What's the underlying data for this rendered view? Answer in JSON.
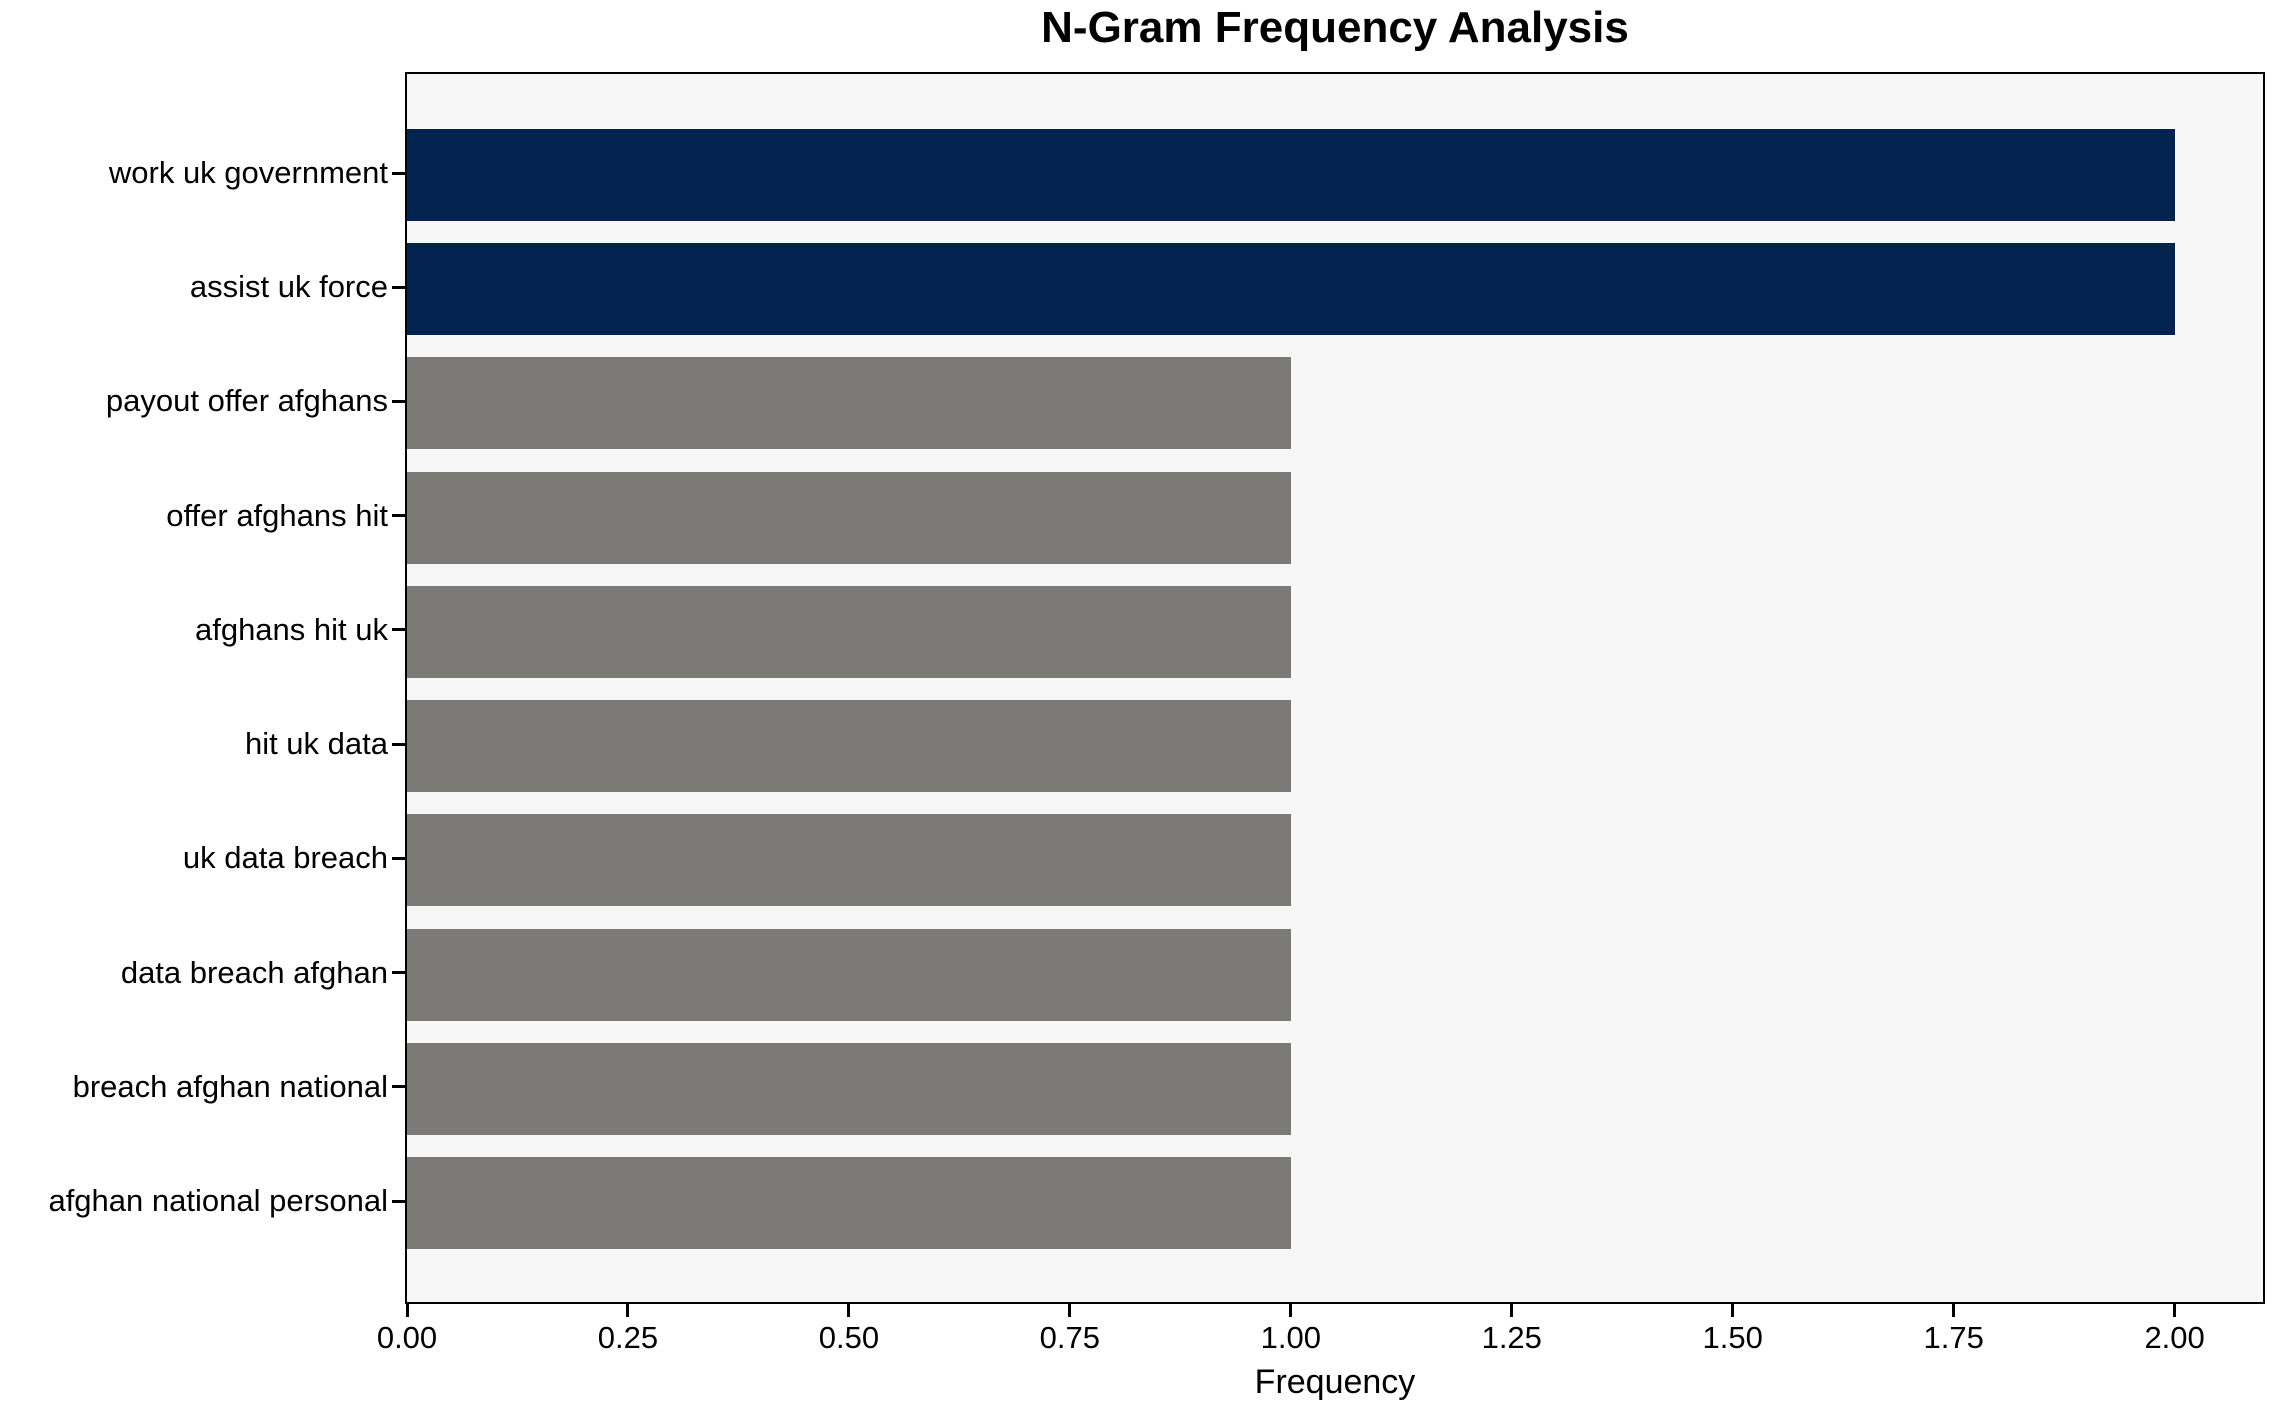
{
  "chart_data": {
    "type": "bar",
    "orientation": "horizontal",
    "title": "N-Gram Frequency Analysis",
    "xlabel": "Frequency",
    "ylabel": "",
    "categories": [
      "work uk government",
      "assist uk force",
      "payout offer afghans",
      "offer afghans hit",
      "afghans hit uk",
      "hit uk data",
      "uk data breach",
      "data breach afghan",
      "breach afghan national",
      "afghan national personal"
    ],
    "values": [
      2,
      2,
      1,
      1,
      1,
      1,
      1,
      1,
      1,
      1
    ],
    "bar_colors": [
      "#02234e",
      "#02234e",
      "#7b7a77",
      "#7b7a77",
      "#7b7a77",
      "#7b7a77",
      "#7b7a77",
      "#7b7a77",
      "#7b7a77",
      "#7b7a77"
    ],
    "highlight_color": "#02234e",
    "default_bar_color": "#7b7a77",
    "plot_background": "#f8f7f7",
    "figure_background": "#ffffff",
    "spine_color": "#000000",
    "xlim": [
      0,
      2.1
    ],
    "xticks": [
      "0.00",
      "0.25",
      "0.50",
      "0.75",
      "1.00",
      "1.25",
      "1.50",
      "1.75",
      "2.00"
    ],
    "grid": false,
    "legend_position": "none"
  }
}
